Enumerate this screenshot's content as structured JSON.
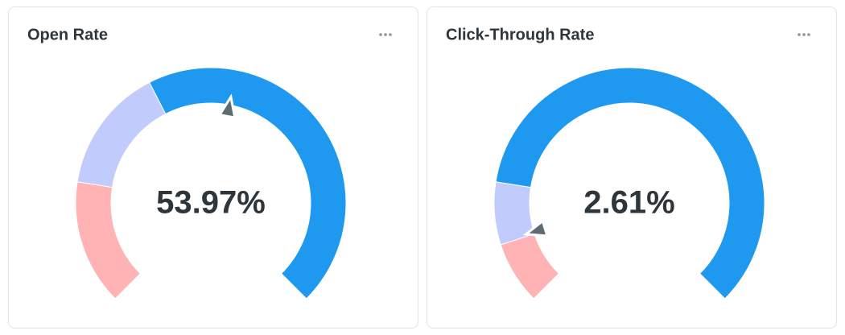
{
  "chart_data": [
    {
      "type": "gauge",
      "title": "Open Rate",
      "value": 53.97,
      "value_label": "53.97%",
      "range": [
        0,
        100
      ],
      "segments": [
        {
          "min": 0,
          "max": 20,
          "color": "#ffb3b4"
        },
        {
          "min": 20,
          "max": 40,
          "color": "#c1cbfc"
        },
        {
          "min": 40,
          "max": 100,
          "color": "#1f99ef"
        }
      ],
      "needle_color": "#5f6b73"
    },
    {
      "type": "gauge",
      "title": "Click-Through Rate",
      "value": 2.61,
      "value_label": "2.61%",
      "range": [
        0,
        25
      ],
      "segments": [
        {
          "min": 0,
          "max": 2.5,
          "color": "#ffb3b4"
        },
        {
          "min": 2.5,
          "max": 5,
          "color": "#c1cbfc"
        },
        {
          "min": 5,
          "max": 25,
          "color": "#1f99ef"
        }
      ],
      "needle_color": "#5f6b73"
    }
  ]
}
